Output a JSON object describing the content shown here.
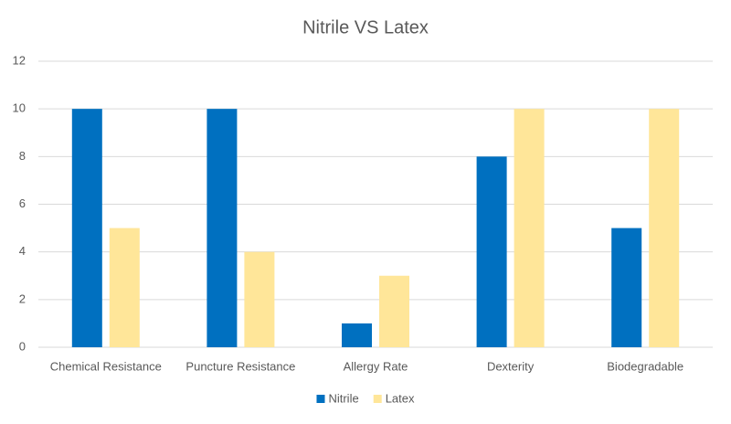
{
  "chart_data": {
    "type": "bar",
    "title": "Nitrile VS Latex",
    "categories": [
      "Chemical Resistance",
      "Puncture Resistance",
      "Allergy Rate",
      "Dexterity",
      "Biodegradable"
    ],
    "series": [
      {
        "name": "Nitrile",
        "color": "#0070c0",
        "values": [
          10,
          10,
          1,
          8,
          5
        ]
      },
      {
        "name": "Latex",
        "color": "#ffe699",
        "values": [
          5,
          4,
          3,
          10,
          10
        ]
      }
    ],
    "ylim": [
      0,
      12
    ],
    "yticks": [
      0,
      2,
      4,
      6,
      8,
      10,
      12
    ],
    "grid": true,
    "legend": "bottom"
  }
}
